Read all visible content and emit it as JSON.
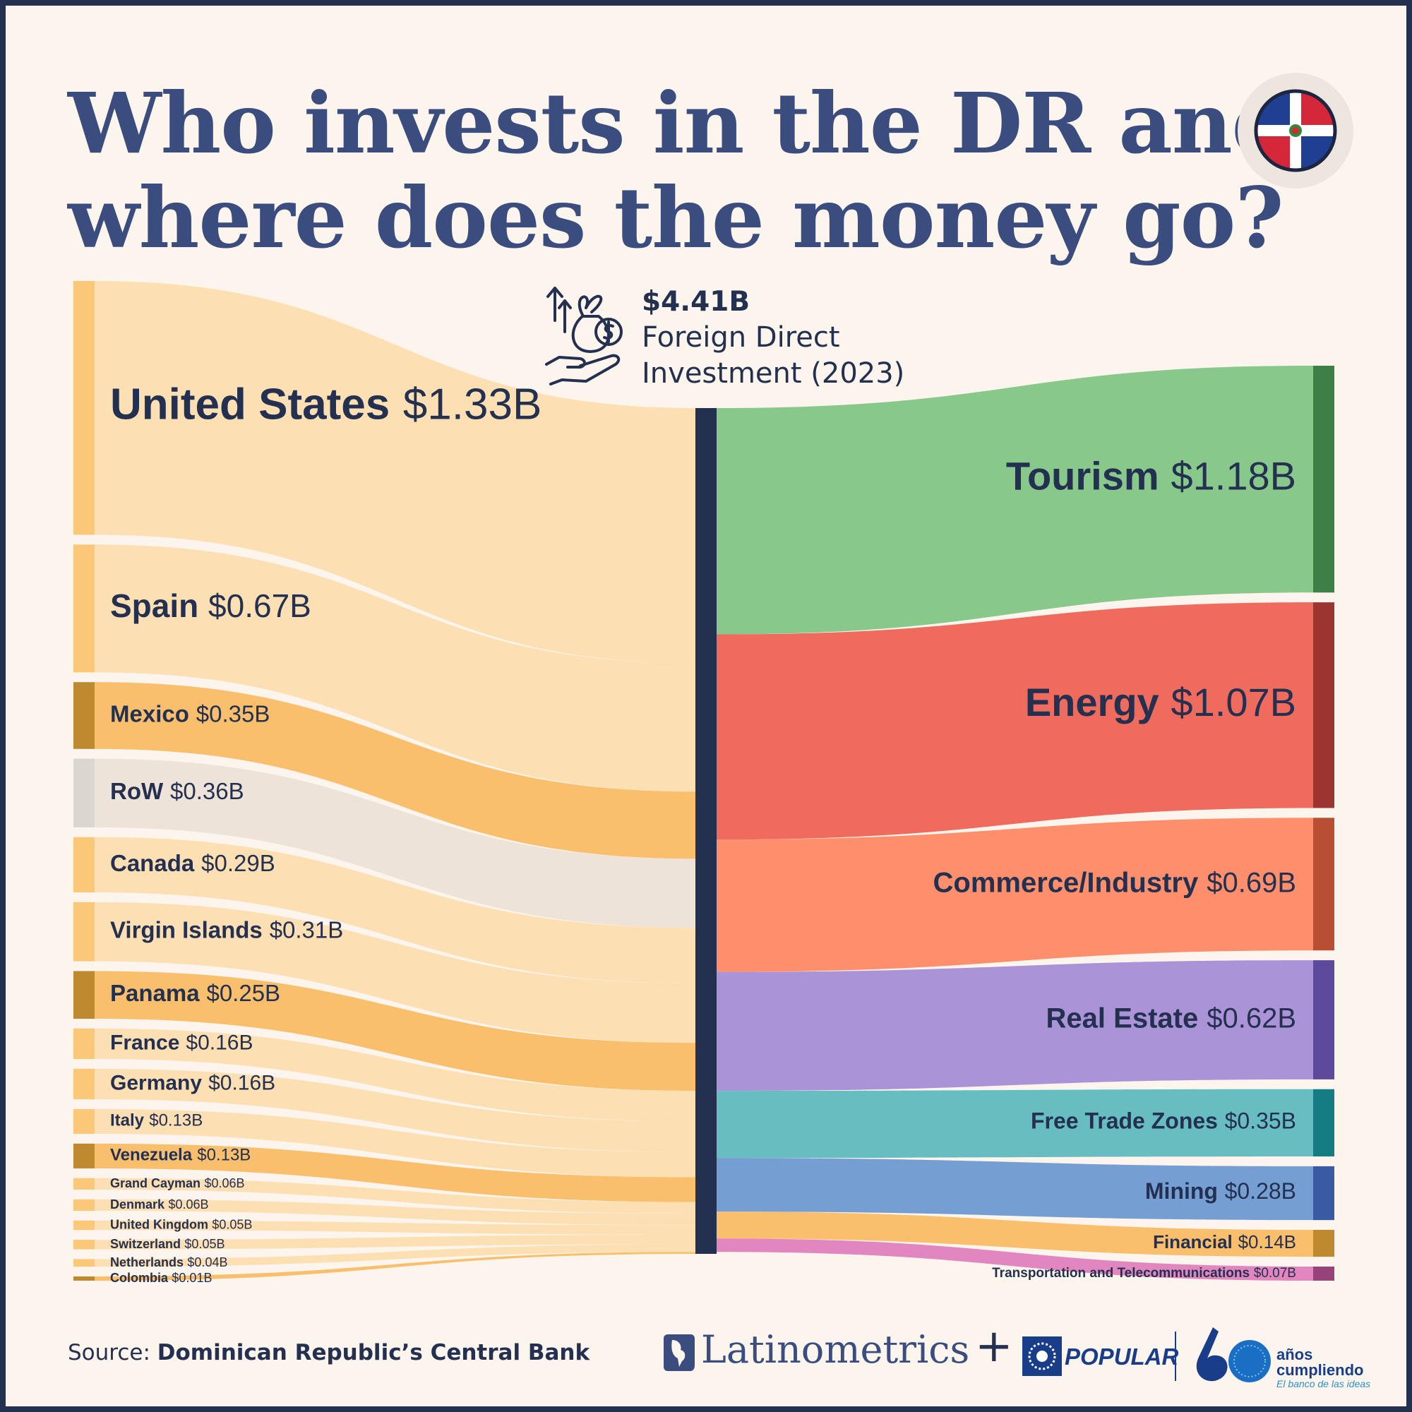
{
  "title": {
    "line1": "Who invests in the DR and",
    "line2": "where does the money go?"
  },
  "header": {
    "total": "$4.41B",
    "line1": "Foreign Direct",
    "line2": "Investment (2023)"
  },
  "source": {
    "prefix": "Source: ",
    "name": "Dominican Republic’s Central Bank"
  },
  "brands": {
    "latinometrics": "Latinometrics",
    "plus": "+",
    "popular": "POPULAR",
    "anos_line1": "años",
    "anos_line2": "cumpliendo",
    "tagline": "El banco de las ideas"
  },
  "icons": [
    "flag-icon",
    "investment-money-bag-icon",
    "latinometrics-logo-icon",
    "popular-logo-icon",
    "sixty-years-icon"
  ],
  "chart_data": {
    "type": "sankey",
    "unit": "$B",
    "total": 4.41,
    "sources": [
      {
        "name": "United States",
        "label": "$1.33B",
        "value": 1.33,
        "color": "#fddfb4",
        "bar": "#fbc879"
      },
      {
        "name": "Spain",
        "label": "$0.67B",
        "value": 0.67,
        "color": "#fddfb4",
        "bar": "#fbc879"
      },
      {
        "name": "Mexico",
        "label": "$0.35B",
        "value": 0.35,
        "color": "#f9bf6c",
        "bar": "#bf892f"
      },
      {
        "name": "RoW",
        "label": "$0.36B",
        "value": 0.36,
        "color": "#ede3d8",
        "bar": "#dcd6d0"
      },
      {
        "name": "Canada",
        "label": "$0.29B",
        "value": 0.29,
        "color": "#fddfb4",
        "bar": "#fbc879"
      },
      {
        "name": "Virgin Islands",
        "label": "$0.31B",
        "value": 0.31,
        "color": "#fddfb4",
        "bar": "#fbc879"
      },
      {
        "name": "Panama",
        "label": "$0.25B",
        "value": 0.25,
        "color": "#f9bf6c",
        "bar": "#bf892f"
      },
      {
        "name": "France",
        "label": "$0.16B",
        "value": 0.16,
        "color": "#fddfb4",
        "bar": "#fbc879"
      },
      {
        "name": "Germany",
        "label": "$0.16B",
        "value": 0.16,
        "color": "#fddfb4",
        "bar": "#fbc879"
      },
      {
        "name": "Italy",
        "label": "$0.13B",
        "value": 0.13,
        "color": "#fddfb4",
        "bar": "#fbc879"
      },
      {
        "name": "Venezuela",
        "label": "$0.13B",
        "value": 0.13,
        "color": "#f9bf6c",
        "bar": "#bf892f"
      },
      {
        "name": "Grand Cayman",
        "label": "$0.06B",
        "value": 0.06,
        "color": "#fddfb4",
        "bar": "#fbc879"
      },
      {
        "name": "Denmark",
        "label": "$0.06B",
        "value": 0.06,
        "color": "#fddfb4",
        "bar": "#fbc879"
      },
      {
        "name": "United Kingdom",
        "label": "$0.05B",
        "value": 0.05,
        "color": "#fddfb4",
        "bar": "#fbc879"
      },
      {
        "name": "Switzerland",
        "label": "$0.05B",
        "value": 0.05,
        "color": "#fddfb4",
        "bar": "#fbc879"
      },
      {
        "name": "Netherlands",
        "label": "$0.04B",
        "value": 0.04,
        "color": "#fddfb4",
        "bar": "#fbc879"
      },
      {
        "name": "Colombia",
        "label": "$0.01B",
        "value": 0.01,
        "color": "#f9bf6c",
        "bar": "#bf892f"
      }
    ],
    "targets": [
      {
        "name": "Tourism",
        "label": "$1.18B",
        "value": 1.18,
        "color": "#88c98b",
        "bar": "#3e7f48"
      },
      {
        "name": "Energy",
        "label": "$1.07B",
        "value": 1.07,
        "color": "#ef6b5d",
        "bar": "#9c3530"
      },
      {
        "name": "Commerce/Industry",
        "label": "$0.69B",
        "value": 0.69,
        "color": "#fd8f6c",
        "bar": "#b84e33"
      },
      {
        "name": "Real Estate",
        "label": "$0.62B",
        "value": 0.62,
        "color": "#aa94d7",
        "bar": "#5e4a9c"
      },
      {
        "name": "Free Trade Zones",
        "label": "$0.35B",
        "value": 0.35,
        "color": "#68bdc1",
        "bar": "#167c84"
      },
      {
        "name": "Mining",
        "label": "$0.28B",
        "value": 0.28,
        "color": "#759fd3",
        "bar": "#3a5aa4"
      },
      {
        "name": "Financial",
        "label": "$0.14B",
        "value": 0.14,
        "color": "#f9bf6c",
        "bar": "#bf892f"
      },
      {
        "name": "Transportation and Telecommunications",
        "label": "$0.07B",
        "value": 0.07,
        "color": "#e286bf",
        "bar": "#97427a"
      }
    ],
    "hub_color": "#243050"
  }
}
